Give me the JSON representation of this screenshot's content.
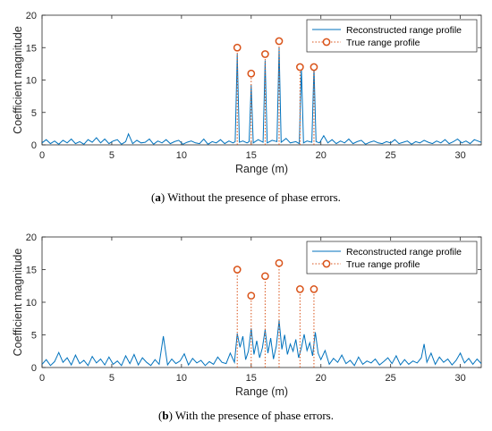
{
  "captions": [
    {
      "tag": "a",
      "text": " Without the presence of phase errors."
    },
    {
      "tag": "b",
      "text": " With the presence of phase errors."
    }
  ],
  "colors": {
    "reconstructed": "#0072BD",
    "true": "#D95319",
    "axis": "#262626"
  },
  "chart_data": [
    {
      "type": "line",
      "xlabel": "Range (m)",
      "ylabel": "Coefficient magnitude",
      "xlim": [
        0,
        31.5
      ],
      "ylim": [
        0,
        20
      ],
      "xticks": [
        0,
        5,
        10,
        15,
        20,
        25,
        30
      ],
      "yticks": [
        0,
        5,
        10,
        15,
        20
      ],
      "grid": false,
      "legend_position": "top-right",
      "legend": [
        "Reconstructed range profile",
        "True range profile"
      ],
      "series": [
        {
          "name": "Reconstructed range profile",
          "style": "solid",
          "x": [
            0,
            0.3,
            0.6,
            0.9,
            1.2,
            1.5,
            1.8,
            2.1,
            2.4,
            2.7,
            3.0,
            3.3,
            3.6,
            3.9,
            4.2,
            4.5,
            4.8,
            5.1,
            5.4,
            5.7,
            6.0,
            6.2,
            6.5,
            6.8,
            7.1,
            7.4,
            7.7,
            8.0,
            8.3,
            8.6,
            8.9,
            9.2,
            9.5,
            9.8,
            10.1,
            10.4,
            10.7,
            11.0,
            11.3,
            11.6,
            11.9,
            12.2,
            12.5,
            12.8,
            13.1,
            13.4,
            13.7,
            13.85,
            14.0,
            14.15,
            14.4,
            14.7,
            14.85,
            15.0,
            15.15,
            15.5,
            15.85,
            16.0,
            16.15,
            16.5,
            16.85,
            17.0,
            17.15,
            17.5,
            17.8,
            18.2,
            18.45,
            18.6,
            18.75,
            19.0,
            19.35,
            19.5,
            19.65,
            19.9,
            20.2,
            20.5,
            20.8,
            21.1,
            21.4,
            21.7,
            22.0,
            22.3,
            22.6,
            22.9,
            23.2,
            23.5,
            23.8,
            24.1,
            24.4,
            24.7,
            25.0,
            25.3,
            25.6,
            25.9,
            26.2,
            26.5,
            26.8,
            27.1,
            27.4,
            27.7,
            28.0,
            28.3,
            28.6,
            28.9,
            29.2,
            29.5,
            29.8,
            30.1,
            30.4,
            30.7,
            31.0,
            31.5
          ],
          "y": [
            0.3,
            0.8,
            0.2,
            0.6,
            0.1,
            0.7,
            0.3,
            0.9,
            0.2,
            0.5,
            0.1,
            0.8,
            0.4,
            1.1,
            0.3,
            0.9,
            0.2,
            0.6,
            0.8,
            0.1,
            0.5,
            1.7,
            0.2,
            0.7,
            0.3,
            0.4,
            0.9,
            0.1,
            0.6,
            0.3,
            0.8,
            0.2,
            0.5,
            0.7,
            0.1,
            0.4,
            0.6,
            0.3,
            0.2,
            0.9,
            0.1,
            0.5,
            0.3,
            0.8,
            0.2,
            0.6,
            0.3,
            0.5,
            14.0,
            0.4,
            0.6,
            0.3,
            0.5,
            9.2,
            0.3,
            0.8,
            0.4,
            13.0,
            0.3,
            0.7,
            0.5,
            15.0,
            0.4,
            1.0,
            0.3,
            0.5,
            0.2,
            12.0,
            0.3,
            0.6,
            0.4,
            12.0,
            0.5,
            0.3,
            1.4,
            0.3,
            0.8,
            0.2,
            0.6,
            0.3,
            0.9,
            0.2,
            0.5,
            0.7,
            0.1,
            0.4,
            0.6,
            0.3,
            0.2,
            0.5,
            0.3,
            0.8,
            0.2,
            0.4,
            0.6,
            0.1,
            0.5,
            0.3,
            0.7,
            0.4,
            0.2,
            0.6,
            0.3,
            0.8,
            0.2,
            0.5,
            0.9,
            0.3,
            0.6,
            0.2,
            0.8,
            0.4
          ]
        },
        {
          "name": "True range profile",
          "style": "stem",
          "x": [
            14.0,
            15.0,
            16.0,
            17.0,
            18.5,
            19.5
          ],
          "y": [
            15,
            11,
            14,
            16,
            12,
            12
          ]
        }
      ]
    },
    {
      "type": "line",
      "xlabel": "Range (m)",
      "ylabel": "Coefficient magnitude",
      "xlim": [
        0,
        31.5
      ],
      "ylim": [
        0,
        20
      ],
      "xticks": [
        0,
        5,
        10,
        15,
        20,
        25,
        30
      ],
      "yticks": [
        0,
        5,
        10,
        15,
        20
      ],
      "grid": false,
      "legend_position": "top-right",
      "legend": [
        "Reconstructed range profile",
        "True range profile"
      ],
      "series": [
        {
          "name": "Reconstructed range profile",
          "style": "solid",
          "x": [
            0,
            0.3,
            0.6,
            0.9,
            1.2,
            1.5,
            1.8,
            2.1,
            2.4,
            2.7,
            3.0,
            3.3,
            3.6,
            3.9,
            4.2,
            4.5,
            4.8,
            5.1,
            5.4,
            5.7,
            6.0,
            6.3,
            6.6,
            6.9,
            7.2,
            7.5,
            7.8,
            8.1,
            8.4,
            8.7,
            9.0,
            9.3,
            9.6,
            9.9,
            10.2,
            10.5,
            10.8,
            11.1,
            11.4,
            11.7,
            12.0,
            12.3,
            12.6,
            12.9,
            13.2,
            13.5,
            13.8,
            14.0,
            14.2,
            14.4,
            14.6,
            14.8,
            15.0,
            15.2,
            15.4,
            15.6,
            15.8,
            16.0,
            16.2,
            16.4,
            16.6,
            16.8,
            17.0,
            17.2,
            17.4,
            17.6,
            17.8,
            18.0,
            18.2,
            18.4,
            18.6,
            18.8,
            19.0,
            19.2,
            19.4,
            19.6,
            19.8,
            20.0,
            20.3,
            20.6,
            20.9,
            21.2,
            21.5,
            21.8,
            22.1,
            22.4,
            22.7,
            23.0,
            23.3,
            23.6,
            23.9,
            24.2,
            24.5,
            24.8,
            25.1,
            25.4,
            25.7,
            26.0,
            26.3,
            26.6,
            26.9,
            27.2,
            27.4,
            27.6,
            27.9,
            28.2,
            28.5,
            28.8,
            29.1,
            29.4,
            29.7,
            30.0,
            30.3,
            30.6,
            30.9,
            31.2,
            31.5
          ],
          "y": [
            0.5,
            1.2,
            0.3,
            0.9,
            2.3,
            0.8,
            1.5,
            0.4,
            1.9,
            0.6,
            1.1,
            0.3,
            1.7,
            0.7,
            1.3,
            0.4,
            1.6,
            0.5,
            1.0,
            0.3,
            1.8,
            0.6,
            2.0,
            0.4,
            1.5,
            0.8,
            0.3,
            1.2,
            0.5,
            4.8,
            0.4,
            1.3,
            0.6,
            1.0,
            2.1,
            0.4,
            1.4,
            0.7,
            1.1,
            0.3,
            0.9,
            0.5,
            1.6,
            0.8,
            0.6,
            2.2,
            0.8,
            5.2,
            3.1,
            4.8,
            1.2,
            2.5,
            6.0,
            2.0,
            4.1,
            1.5,
            3.0,
            5.8,
            2.2,
            4.5,
            1.3,
            3.3,
            7.2,
            2.8,
            5.0,
            2.0,
            3.6,
            2.5,
            4.3,
            1.5,
            3.0,
            5.1,
            2.6,
            3.8,
            1.8,
            5.4,
            2.2,
            1.2,
            2.6,
            0.5,
            1.4,
            0.8,
            1.9,
            0.6,
            1.1,
            0.3,
            1.6,
            0.5,
            1.0,
            0.7,
            1.3,
            0.4,
            0.9,
            1.5,
            0.6,
            1.8,
            0.4,
            1.2,
            0.5,
            1.0,
            0.7,
            1.5,
            3.6,
            0.8,
            2.2,
            0.5,
            1.6,
            0.8,
            1.3,
            0.4,
            1.1,
            2.2,
            0.7,
            1.4,
            0.5,
            1.3,
            0.6
          ]
        },
        {
          "name": "True range profile",
          "style": "stem",
          "x": [
            14.0,
            15.0,
            16.0,
            17.0,
            18.5,
            19.5
          ],
          "y": [
            15,
            11,
            14,
            16,
            12,
            12
          ]
        }
      ]
    }
  ]
}
